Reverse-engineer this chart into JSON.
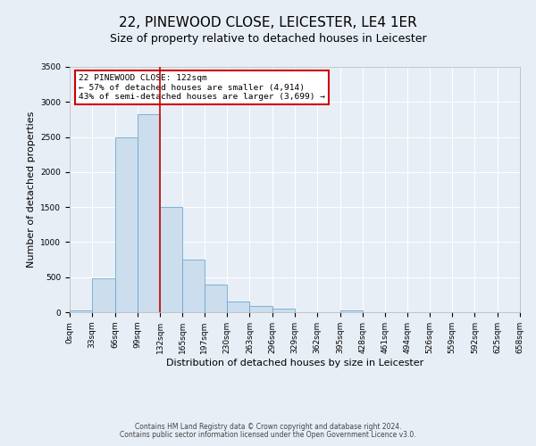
{
  "title": "22, PINEWOOD CLOSE, LEICESTER, LE4 1ER",
  "subtitle": "Size of property relative to detached houses in Leicester",
  "xlabel": "Distribution of detached houses by size in Leicester",
  "ylabel": "Number of detached properties",
  "bin_edges": [
    0,
    33,
    66,
    99,
    132,
    165,
    197,
    230,
    263,
    296,
    329,
    362,
    395,
    428,
    461,
    494,
    526,
    559,
    592,
    625,
    658
  ],
  "bar_heights": [
    20,
    480,
    2500,
    2820,
    1500,
    750,
    400,
    150,
    90,
    50,
    0,
    0,
    30,
    0,
    0,
    0,
    0,
    0,
    0,
    0
  ],
  "bar_color": "#ccdded",
  "bar_edge_color": "#6aaad4",
  "vline_x": 132,
  "vline_color": "#cc0000",
  "ylim": [
    0,
    3500
  ],
  "yticks": [
    0,
    500,
    1000,
    1500,
    2000,
    2500,
    3000,
    3500
  ],
  "annotation_box_text": "22 PINEWOOD CLOSE: 122sqm\n← 57% of detached houses are smaller (4,914)\n43% of semi-detached houses are larger (3,699) →",
  "footer_line1": "Contains HM Land Registry data © Crown copyright and database right 2024.",
  "footer_line2": "Contains public sector information licensed under the Open Government Licence v3.0.",
  "background_color": "#e8eef6",
  "plot_bg_color": "#e8eef6",
  "grid_color": "#ffffff",
  "title_fontsize": 11,
  "subtitle_fontsize": 9,
  "axis_label_fontsize": 8,
  "tick_fontsize": 6.5,
  "footer_fontsize": 5.5
}
